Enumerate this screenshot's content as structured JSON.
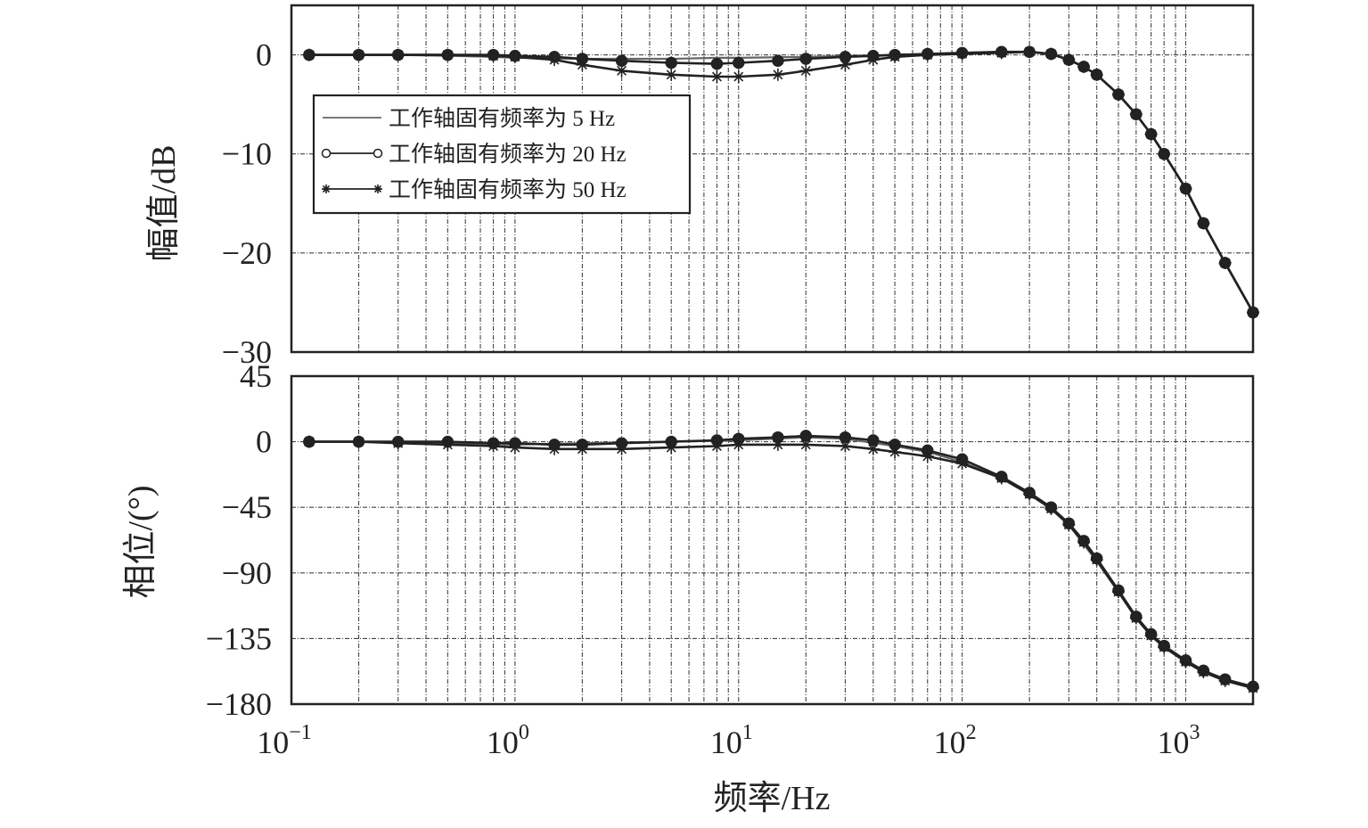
{
  "chart_data": [
    {
      "type": "line",
      "panel": "magnitude",
      "x_scale": "log",
      "xlim": [
        0.1,
        2000
      ],
      "ylim": [
        -30,
        5
      ],
      "ylabel": "幅值/dB",
      "xlabel": "",
      "grid": true,
      "legend_position": "upper-left",
      "y_ticks": [
        {
          "value": 0,
          "label": "0"
        },
        {
          "value": -10,
          "label": "−10"
        },
        {
          "value": -20,
          "label": "−20"
        },
        {
          "value": -30,
          "label": "−30"
        }
      ],
      "series": [
        {
          "name": "工作轴固有频率为 5 Hz",
          "marker": "none",
          "color": "#666666",
          "x": [
            0.12,
            0.2,
            0.3,
            0.5,
            0.8,
            1.0,
            2.0,
            3.0,
            5.0,
            8.0,
            10,
            20,
            30,
            50,
            80,
            100,
            150,
            200,
            250,
            300,
            350,
            400,
            500,
            600,
            700,
            800,
            1000,
            1200,
            1500,
            2000
          ],
          "y": [
            0,
            0,
            0,
            -0.1,
            -0.2,
            -0.3,
            -0.4,
            -0.4,
            -0.4,
            -0.3,
            -0.3,
            -0.2,
            -0.1,
            0,
            0.1,
            0.2,
            0.3,
            0.3,
            0.1,
            -0.5,
            -1.2,
            -2.0,
            -4.0,
            -6.0,
            -8.0,
            -10.0,
            -13.5,
            -17.0,
            -21.0,
            -26.0
          ]
        },
        {
          "name": "工作轴固有频率为 20 Hz",
          "marker": "circle",
          "color": "#222222",
          "x": [
            0.12,
            0.2,
            0.3,
            0.5,
            0.8,
            1.0,
            1.5,
            2.0,
            3.0,
            5.0,
            8.0,
            10,
            15,
            20,
            30,
            40,
            50,
            70,
            100,
            150,
            200,
            250,
            300,
            350,
            400,
            500,
            600,
            700,
            800,
            1000,
            1200,
            1500,
            2000
          ],
          "y": [
            0,
            0,
            0,
            0,
            0,
            -0.1,
            -0.2,
            -0.4,
            -0.6,
            -0.8,
            -0.9,
            -0.8,
            -0.6,
            -0.4,
            -0.2,
            -0.1,
            0,
            0.1,
            0.2,
            0.3,
            0.3,
            0.1,
            -0.5,
            -1.2,
            -2.0,
            -4.0,
            -6.0,
            -8.0,
            -10.0,
            -13.5,
            -17.0,
            -21.0,
            -26.0
          ]
        },
        {
          "name": "工作轴固有频率为 50 Hz",
          "marker": "star",
          "color": "#222222",
          "x": [
            0.12,
            0.2,
            0.3,
            0.5,
            0.8,
            1.0,
            1.5,
            2.0,
            3.0,
            5.0,
            8.0,
            10,
            15,
            20,
            30,
            40,
            50,
            70,
            100,
            150,
            200,
            250,
            300,
            350,
            400,
            500,
            600,
            700,
            800,
            1000,
            1200,
            1500,
            2000
          ],
          "y": [
            0,
            0,
            0,
            0,
            -0.1,
            -0.2,
            -0.5,
            -1.0,
            -1.6,
            -2.0,
            -2.2,
            -2.2,
            -2.0,
            -1.6,
            -1.0,
            -0.5,
            -0.2,
            0,
            0.1,
            0.2,
            0.3,
            0.1,
            -0.5,
            -1.2,
            -2.0,
            -4.0,
            -6.0,
            -8.0,
            -10.0,
            -13.5,
            -17.0,
            -21.0,
            -26.0
          ]
        }
      ]
    },
    {
      "type": "line",
      "panel": "phase",
      "x_scale": "log",
      "xlim": [
        0.1,
        2000
      ],
      "ylim": [
        -180,
        45
      ],
      "ylabel": "相位/(°)",
      "xlabel": "频率/Hz",
      "grid": true,
      "y_ticks": [
        {
          "value": 45,
          "label": "45"
        },
        {
          "value": 0,
          "label": "0"
        },
        {
          "value": -45,
          "label": "−45"
        },
        {
          "value": -90,
          "label": "−90"
        },
        {
          "value": -135,
          "label": "−135"
        },
        {
          "value": -180,
          "label": "−180"
        }
      ],
      "x_ticks": [
        {
          "value": 0.1,
          "base": "10",
          "exp": "−1"
        },
        {
          "value": 1,
          "base": "10",
          "exp": "0"
        },
        {
          "value": 10,
          "base": "10",
          "exp": "1"
        },
        {
          "value": 100,
          "base": "10",
          "exp": "2"
        },
        {
          "value": 1000,
          "base": "10",
          "exp": "3"
        }
      ],
      "series": [
        {
          "name": "工作轴固有频率为 5 Hz",
          "marker": "none",
          "color": "#666666",
          "x": [
            0.12,
            0.2,
            0.5,
            1.0,
            2.0,
            5.0,
            10,
            20,
            30,
            50,
            70,
            100,
            150,
            200,
            250,
            300,
            400,
            500,
            600,
            700,
            800,
            1000,
            1200,
            1500,
            2000
          ],
          "y": [
            0,
            0,
            -1,
            -2,
            -1,
            0,
            1,
            3,
            2,
            -3,
            -7,
            -14,
            -25,
            -36,
            -46,
            -57,
            -82,
            -103,
            -121,
            -133,
            -141,
            -151,
            -158,
            -164,
            -169
          ]
        },
        {
          "name": "工作轴固有频率为 20 Hz",
          "marker": "circle",
          "color": "#222222",
          "x": [
            0.12,
            0.2,
            0.3,
            0.5,
            0.8,
            1.0,
            1.5,
            2.0,
            3.0,
            5.0,
            8.0,
            10,
            15,
            20,
            30,
            40,
            50,
            70,
            100,
            150,
            200,
            250,
            300,
            350,
            400,
            500,
            600,
            700,
            800,
            1000,
            1200,
            1500,
            2000
          ],
          "y": [
            0,
            0,
            0,
            0,
            -1,
            -1,
            -2,
            -2,
            -1,
            0,
            1,
            2,
            3,
            4,
            3,
            1,
            -2,
            -6,
            -12,
            -24,
            -35,
            -45,
            -56,
            -68,
            -80,
            -102,
            -120,
            -132,
            -140,
            -150,
            -157,
            -163,
            -168
          ]
        },
        {
          "name": "工作轴固有频率为 50 Hz",
          "marker": "star",
          "color": "#222222",
          "x": [
            0.12,
            0.2,
            0.3,
            0.5,
            0.8,
            1.0,
            1.5,
            2.0,
            3.0,
            5.0,
            8.0,
            10,
            15,
            20,
            30,
            40,
            50,
            70,
            100,
            150,
            200,
            250,
            300,
            350,
            400,
            500,
            600,
            700,
            800,
            1000,
            1200,
            1500,
            2000
          ],
          "y": [
            0,
            0,
            -1,
            -2,
            -3,
            -4,
            -5,
            -5,
            -5,
            -4,
            -3,
            -2,
            -2,
            -2,
            -3,
            -5,
            -7,
            -10,
            -15,
            -25,
            -36,
            -46,
            -57,
            -69,
            -81,
            -103,
            -121,
            -133,
            -141,
            -151,
            -158,
            -164,
            -169
          ]
        }
      ]
    }
  ]
}
